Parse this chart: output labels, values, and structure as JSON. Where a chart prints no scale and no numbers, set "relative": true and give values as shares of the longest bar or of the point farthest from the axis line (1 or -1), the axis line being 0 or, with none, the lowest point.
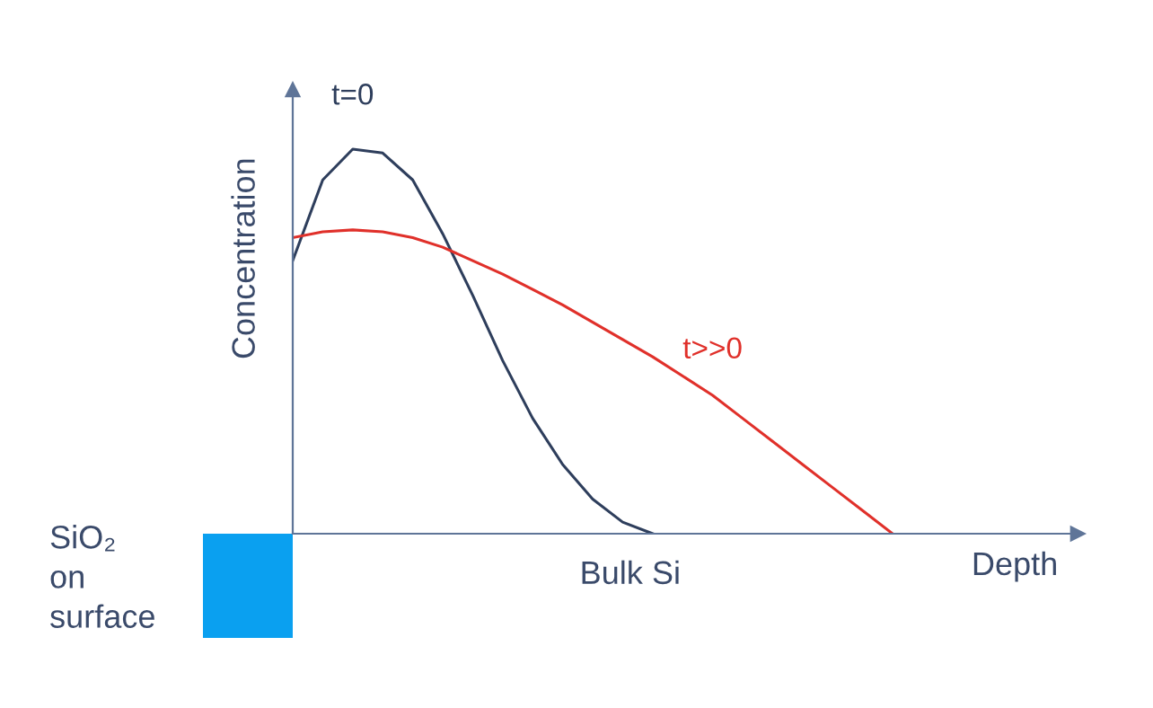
{
  "chart_data": {
    "type": "line",
    "relative": true,
    "xlabel": "Depth",
    "ylabel": "Concentration",
    "categories": [
      null,
      null,
      null,
      null,
      null,
      null,
      null,
      null,
      null,
      null,
      null,
      null,
      null,
      null,
      null,
      null,
      null,
      null,
      null,
      null,
      null
    ],
    "series": [
      {
        "name": "t=0",
        "color": "#2e3e5c",
        "values": [
          0.71,
          0.92,
          1.0,
          0.99,
          0.92,
          0.78,
          0.62,
          0.45,
          0.3,
          0.18,
          0.09,
          0.03,
          0,
          null,
          null,
          null,
          null,
          null,
          null,
          null,
          null
        ]
      },
      {
        "name": "t>>0",
        "color": "#e0302a",
        "values": [
          0.77,
          0.785,
          0.79,
          0.785,
          0.77,
          0.745,
          0.71,
          0.675,
          0.635,
          0.595,
          0.55,
          0.505,
          0.46,
          0.41,
          0.36,
          0.3,
          0.24,
          0.18,
          0.12,
          0.06,
          0
        ]
      }
    ],
    "annotations": [
      "Bulk Si",
      "SiO₂\non\nsurface"
    ]
  }
}
